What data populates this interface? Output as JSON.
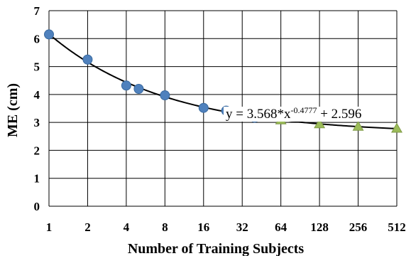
{
  "chart_data": {
    "type": "scatter",
    "xlabel": "Number of Training Subjects",
    "ylabel": "ME (cm)",
    "x_scale": "log2",
    "xlim": [
      1,
      512
    ],
    "ylim": [
      0,
      7
    ],
    "x_ticks": [
      1,
      2,
      4,
      8,
      16,
      32,
      64,
      128,
      256,
      512
    ],
    "x_tick_labels": [
      "1",
      "2",
      "4",
      "8",
      "16",
      "32",
      "64",
      "128",
      "256",
      "512"
    ],
    "y_ticks": [
      0,
      1,
      2,
      3,
      4,
      5,
      6,
      7
    ],
    "y_tick_labels": [
      "0",
      "1",
      "2",
      "3",
      "4",
      "5",
      "6",
      "7"
    ],
    "grid": true,
    "series": [
      {
        "marker": "circle",
        "color": "#4f81bd",
        "x": [
          1,
          2,
          4,
          5,
          8,
          16,
          24,
          32,
          40
        ],
        "y": [
          6.15,
          5.25,
          4.32,
          4.2,
          3.97,
          3.52,
          3.42,
          3.28,
          3.17
        ]
      },
      {
        "marker": "triangle",
        "color": "#9bbb59",
        "x": [
          64,
          128,
          256,
          512
        ],
        "y": [
          3.07,
          2.93,
          2.84,
          2.77
        ]
      },
      {
        "type": "line",
        "color": "#000000",
        "x": [
          1,
          512
        ],
        "formula": {
          "a": 3.568,
          "b": -0.4777,
          "c": 2.596
        }
      }
    ],
    "annotation": {
      "prefix": "y = 3.568*x",
      "superscript": "-0.4777",
      "suffix": " + 2.596"
    }
  }
}
